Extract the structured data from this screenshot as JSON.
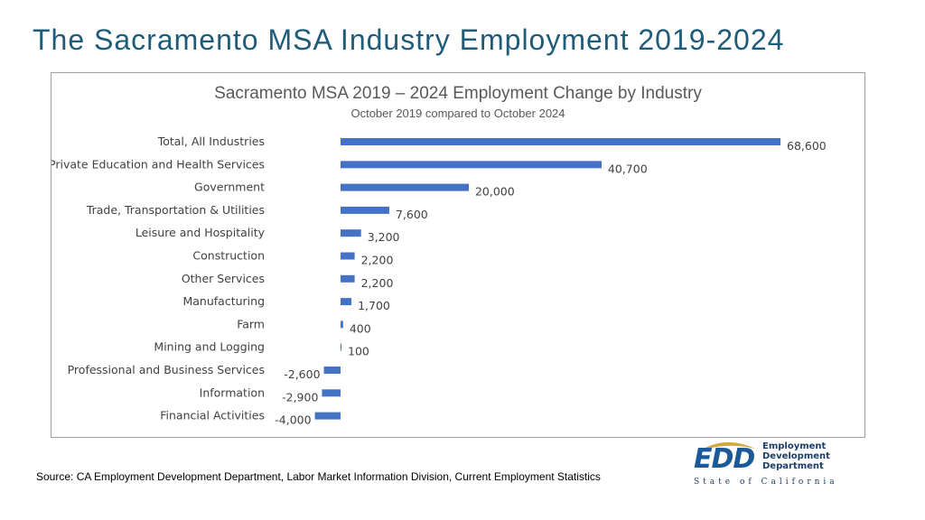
{
  "slide": {
    "title": "The Sacramento MSA Industry Employment 2019-2024",
    "title_color": "#1f5c7a",
    "source": "Source: CA Employment Development Department, Labor Market Information Division, Current Employment Statistics"
  },
  "logo": {
    "mark": "EDD",
    "lines": [
      "Employment",
      "Development",
      "Department"
    ],
    "state": "State of California",
    "colors": {
      "blue": "#1b5a96",
      "gold": "#d4a53a",
      "navy": "#1b3e6b"
    }
  },
  "chart_data": {
    "type": "bar",
    "orientation": "horizontal",
    "title": "Sacramento MSA 2019 – 2024 Employment Change by Industry",
    "subtitle": "October 2019 compared to October 2024",
    "categories": [
      "Total, All Industries",
      "Private Education and Health Services",
      "Government",
      "Trade, Transportation & Utilities",
      "Leisure and Hospitality",
      "Construction",
      "Other Services",
      "Manufacturing",
      "Farm",
      "Mining and Logging",
      "Professional and Business Services",
      "Information",
      "Financial Activities"
    ],
    "values": [
      68600,
      40700,
      20000,
      7600,
      3200,
      2200,
      2200,
      1700,
      400,
      100,
      -2600,
      -2900,
      -4000
    ],
    "data_labels": [
      "68,600",
      "40,700",
      "20,000",
      "7,600",
      "3,200",
      "2,200",
      "2,200",
      "1,700",
      "400",
      "100",
      "-2,600",
      "-2,900",
      "-4,000"
    ],
    "bar_color": "#4472c4",
    "xlim": [
      -4000,
      68600
    ],
    "grid": false,
    "legend": "none"
  }
}
